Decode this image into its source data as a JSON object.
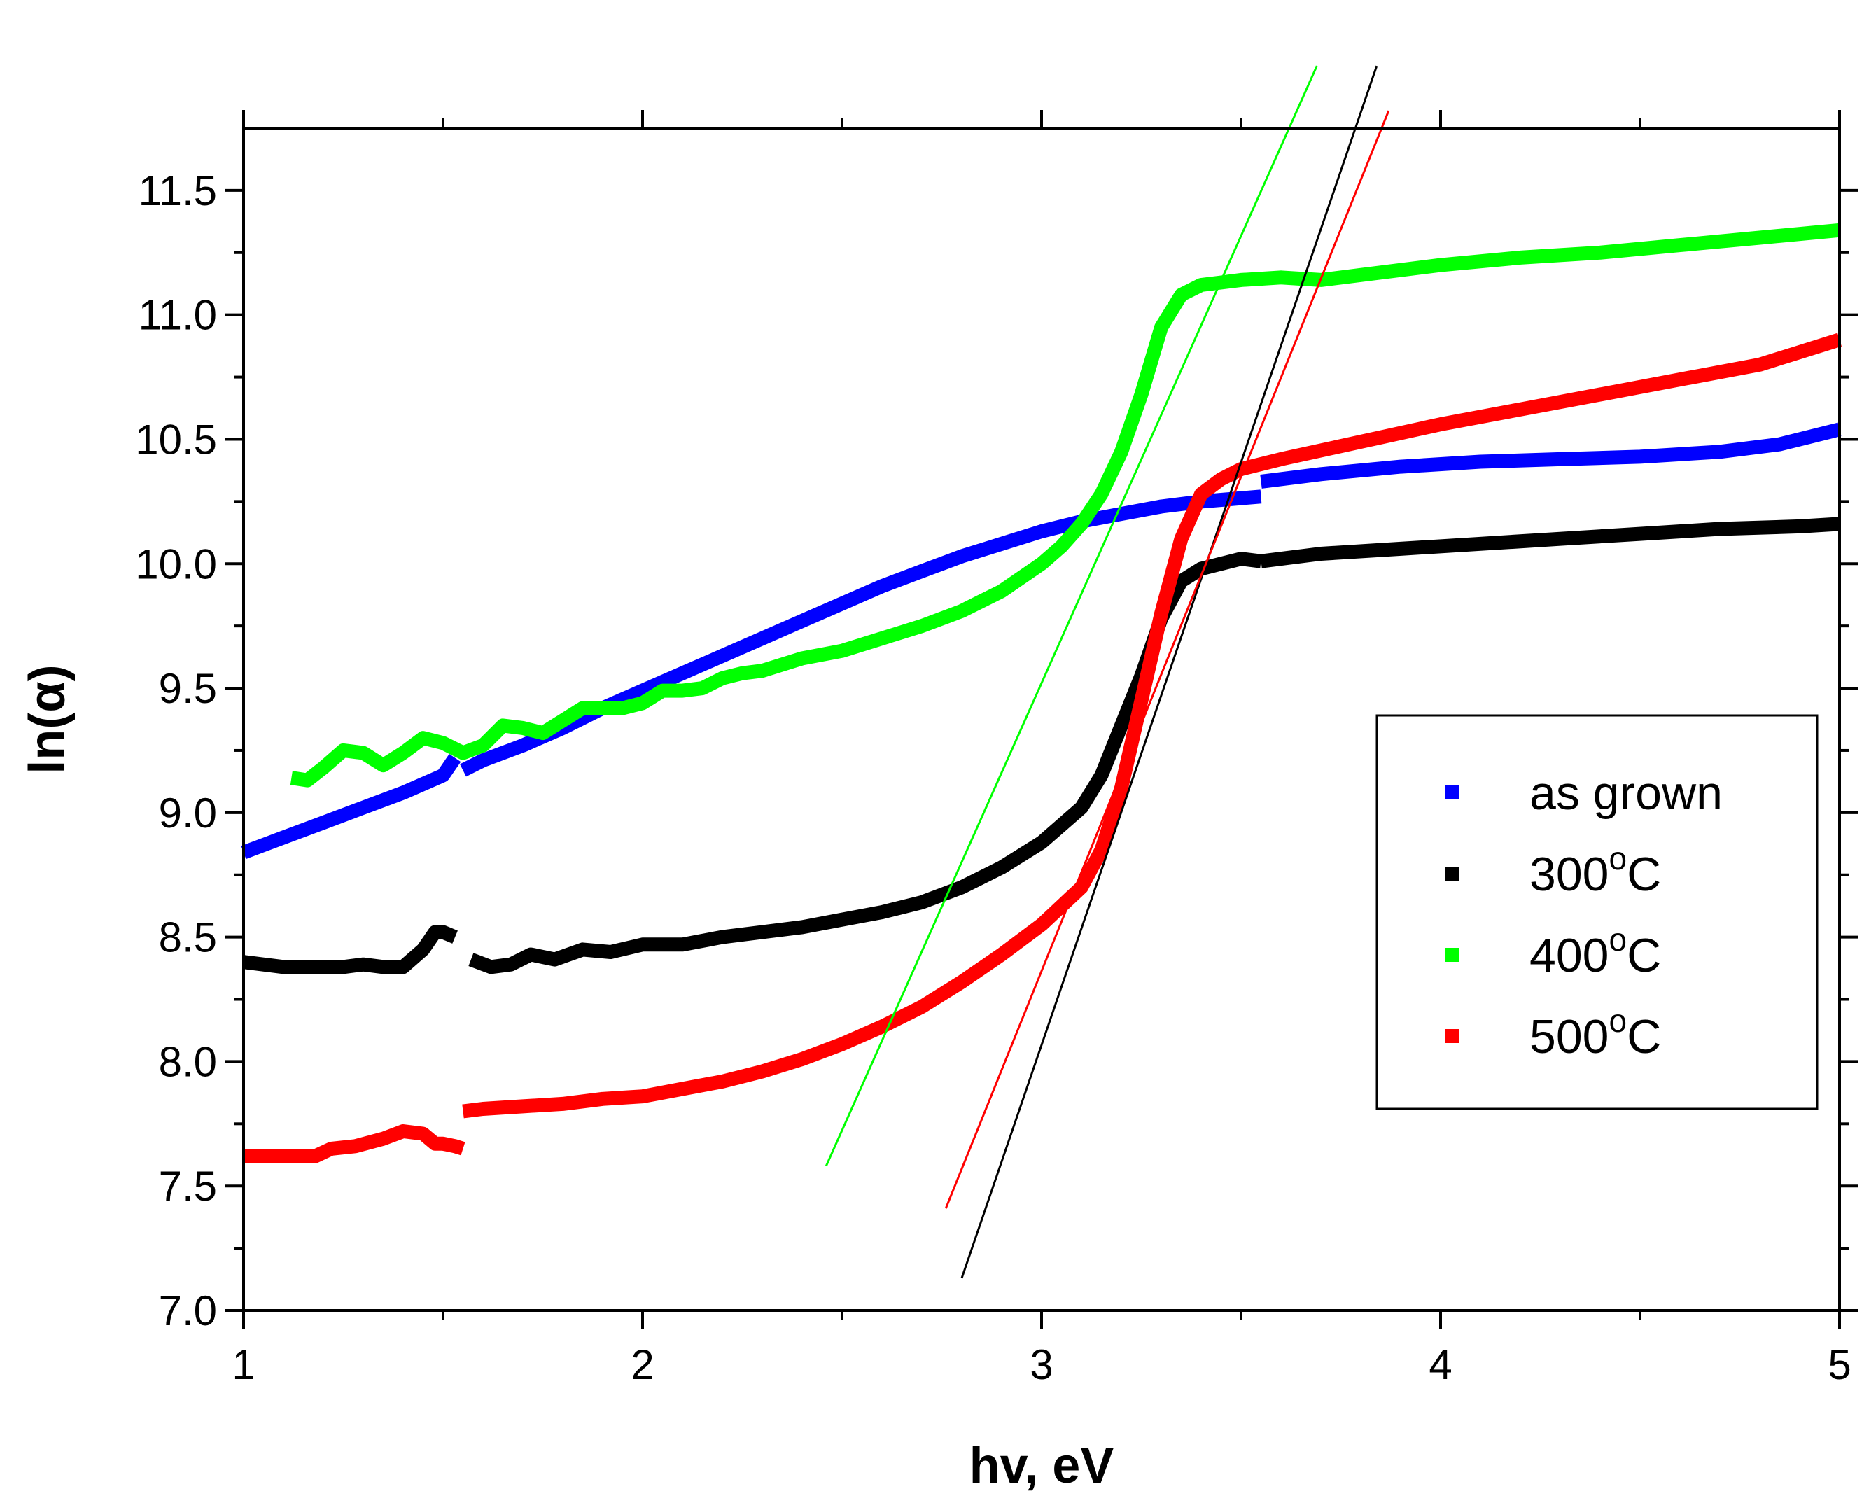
{
  "chart_data": {
    "type": "scatter",
    "title": "",
    "xlabel": "hv, eV",
    "ylabel": "ln(α)",
    "xlim": [
      1,
      5
    ],
    "ylim": [
      7.0,
      11.75
    ],
    "x_ticks": [
      1,
      2,
      3,
      4,
      5
    ],
    "x_tick_labels": [
      "1",
      "2",
      "3",
      "4",
      "5"
    ],
    "y_ticks": [
      7.0,
      7.5,
      8.0,
      8.5,
      9.0,
      9.5,
      10.0,
      10.5,
      11.0,
      11.5
    ],
    "y_tick_labels": [
      "7.0",
      "7.5",
      "8.0",
      "8.5",
      "9.0",
      "9.5",
      "10.0",
      "10.5",
      "11.0",
      "11.5"
    ],
    "grid": false,
    "legend_position": "right",
    "series": [
      {
        "name": "as grown",
        "label_main": "as grown",
        "label_sup": "",
        "label_tail": "",
        "color": "#0000ff",
        "segments": [
          {
            "x": [
              1.0,
              1.1,
              1.2,
              1.3,
              1.4,
              1.5,
              1.53
            ],
            "y": [
              8.84,
              8.9,
              8.96,
              9.02,
              9.08,
              9.15,
              9.22
            ]
          },
          {
            "x": [
              1.55,
              1.6,
              1.7,
              1.8,
              1.9,
              2.0,
              2.1,
              2.2,
              2.3,
              2.4,
              2.5,
              2.6,
              2.7,
              2.8,
              2.9,
              3.0,
              3.1,
              3.2,
              3.3,
              3.4,
              3.55
            ],
            "y": [
              9.17,
              9.21,
              9.27,
              9.34,
              9.42,
              9.49,
              9.56,
              9.63,
              9.7,
              9.77,
              9.84,
              9.91,
              9.97,
              10.03,
              10.08,
              10.13,
              10.17,
              10.2,
              10.23,
              10.25,
              10.27
            ]
          },
          {
            "x": [
              3.55,
              3.7,
              3.9,
              4.1,
              4.3,
              4.5,
              4.7,
              4.85,
              5.0
            ],
            "y": [
              10.33,
              10.36,
              10.39,
              10.41,
              10.42,
              10.43,
              10.45,
              10.48,
              10.54
            ]
          }
        ]
      },
      {
        "name": "300°C",
        "label_main": "300",
        "label_sup": "o",
        "label_tail": "C",
        "color": "#000000",
        "segments": [
          {
            "x": [
              1.0,
              1.1,
              1.2,
              1.25,
              1.3,
              1.35,
              1.4,
              1.45,
              1.48,
              1.5,
              1.53
            ],
            "y": [
              8.4,
              8.38,
              8.38,
              8.38,
              8.39,
              8.38,
              8.38,
              8.45,
              8.52,
              8.52,
              8.5
            ]
          },
          {
            "x": [
              1.57,
              1.62,
              1.67,
              1.72,
              1.78,
              1.85,
              1.92,
              2.0,
              2.1,
              2.2,
              2.3,
              2.4,
              2.5,
              2.6,
              2.7,
              2.8,
              2.9,
              3.0,
              3.1,
              3.15,
              3.2,
              3.25,
              3.3,
              3.35,
              3.4,
              3.45,
              3.5,
              3.55
            ],
            "y": [
              8.41,
              8.38,
              8.39,
              8.43,
              8.41,
              8.45,
              8.44,
              8.47,
              8.47,
              8.5,
              8.52,
              8.54,
              8.57,
              8.6,
              8.64,
              8.7,
              8.78,
              8.88,
              9.02,
              9.15,
              9.35,
              9.55,
              9.78,
              9.93,
              9.98,
              10.0,
              10.02,
              10.01
            ]
          },
          {
            "x": [
              3.55,
              3.7,
              3.9,
              4.1,
              4.3,
              4.5,
              4.7,
              4.9,
              5.0
            ],
            "y": [
              10.01,
              10.04,
              10.06,
              10.08,
              10.1,
              10.12,
              10.14,
              10.15,
              10.16
            ]
          }
        ]
      },
      {
        "name": "400°C",
        "label_main": "400",
        "label_sup": "o",
        "label_tail": "C",
        "color": "#00ff00",
        "segments": [
          {
            "x": [
              1.12,
              1.16,
              1.2,
              1.25,
              1.3,
              1.35,
              1.4,
              1.45,
              1.5,
              1.55,
              1.6,
              1.65,
              1.7,
              1.75,
              1.8,
              1.85,
              1.9,
              1.95,
              2.0,
              2.05,
              2.1,
              2.15,
              2.2,
              2.25,
              2.3,
              2.4,
              2.5,
              2.6,
              2.7,
              2.8,
              2.9,
              3.0,
              3.05,
              3.1,
              3.15,
              3.2,
              3.25,
              3.3,
              3.35,
              3.4,
              3.45,
              3.5,
              3.6,
              3.7,
              3.8,
              4.0,
              4.2,
              4.4,
              4.6,
              4.8,
              5.0
            ],
            "y": [
              9.14,
              9.13,
              9.18,
              9.25,
              9.24,
              9.19,
              9.24,
              9.3,
              9.28,
              9.24,
              9.27,
              9.35,
              9.34,
              9.32,
              9.37,
              9.42,
              9.42,
              9.42,
              9.44,
              9.49,
              9.49,
              9.5,
              9.54,
              9.56,
              9.57,
              9.62,
              9.65,
              9.7,
              9.75,
              9.81,
              9.89,
              10.0,
              10.07,
              10.16,
              10.28,
              10.45,
              10.68,
              10.95,
              11.08,
              11.12,
              11.13,
              11.14,
              11.15,
              11.14,
              11.16,
              11.2,
              11.23,
              11.25,
              11.28,
              11.31,
              11.34
            ]
          }
        ]
      },
      {
        "name": "500°C",
        "label_main": "500",
        "label_sup": "o",
        "label_tail": "C",
        "color": "#ff0000",
        "segments": [
          {
            "x": [
              1.0,
              1.1,
              1.18,
              1.22,
              1.28,
              1.35,
              1.4,
              1.45,
              1.48,
              1.5,
              1.53,
              1.55
            ],
            "y": [
              7.62,
              7.62,
              7.62,
              7.65,
              7.66,
              7.69,
              7.72,
              7.71,
              7.67,
              7.67,
              7.66,
              7.65
            ]
          },
          {
            "x": [
              1.55,
              1.6,
              1.7,
              1.8,
              1.9,
              2.0,
              2.1,
              2.2,
              2.3,
              2.4,
              2.5,
              2.6,
              2.7,
              2.8,
              2.9,
              3.0,
              3.1,
              3.15,
              3.2,
              3.25,
              3.3,
              3.35,
              3.4,
              3.45,
              3.5,
              3.6,
              3.8,
              4.0,
              4.2,
              4.4,
              4.6,
              4.8,
              5.0
            ],
            "y": [
              7.8,
              7.81,
              7.82,
              7.83,
              7.85,
              7.86,
              7.89,
              7.92,
              7.96,
              8.01,
              8.07,
              8.14,
              8.22,
              8.32,
              8.43,
              8.55,
              8.7,
              8.85,
              9.1,
              9.45,
              9.8,
              10.1,
              10.28,
              10.34,
              10.38,
              10.42,
              10.49,
              10.56,
              10.62,
              10.68,
              10.74,
              10.8,
              10.9
            ]
          }
        ]
      }
    ],
    "fit_lines": [
      {
        "name": "400°C fit",
        "color": "#00ff00",
        "x": [
          2.46,
          3.69
        ],
        "y": [
          7.58,
          12.0
        ]
      },
      {
        "name": "300°C fit",
        "color": "#000000",
        "x": [
          2.8,
          3.84
        ],
        "y": [
          7.13,
          12.0
        ]
      },
      {
        "name": "500°C fit",
        "color": "#ff0000",
        "x": [
          2.76,
          3.87
        ],
        "y": [
          7.41,
          11.82
        ]
      }
    ]
  }
}
